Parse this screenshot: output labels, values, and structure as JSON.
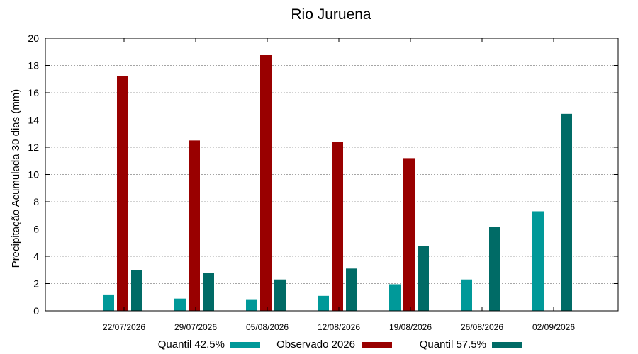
{
  "chart_data": {
    "type": "bar",
    "title": "Rio Juruena",
    "xlabel": "",
    "ylabel": "Precipitação Acumulada 30 dias (mm)",
    "ylim": [
      0,
      20
    ],
    "yticks": [
      0,
      2,
      4,
      6,
      8,
      10,
      12,
      14,
      16,
      18,
      20
    ],
    "grid": true,
    "legend_position": "bottom",
    "categories": [
      "22/07/2026",
      "29/07/2026",
      "05/08/2026",
      "12/08/2026",
      "19/08/2026",
      "26/08/2026",
      "02/09/2026"
    ],
    "series": [
      {
        "name": "Quantil 42.5%",
        "color": "#009999",
        "values": [
          1.2,
          0.9,
          0.8,
          1.1,
          1.95,
          2.3,
          7.3
        ]
      },
      {
        "name": "Observado 2026",
        "color": "#990000",
        "values": [
          17.2,
          12.5,
          18.8,
          12.4,
          11.2,
          null,
          null
        ]
      },
      {
        "name": "Quantil 57.5%",
        "color": "#006b66",
        "values": [
          3.0,
          2.8,
          2.3,
          3.1,
          4.75,
          6.15,
          14.45
        ]
      }
    ]
  }
}
